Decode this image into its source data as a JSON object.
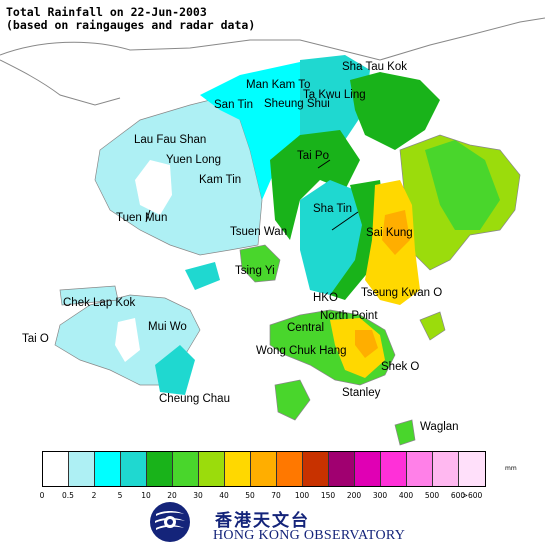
{
  "title_line1": "Total Rainfall on 22-Jun-2003",
  "title_line2": "(based on raingauges and radar data)",
  "places": [
    {
      "id": "sha-tau-kok",
      "label": "Sha Tau Kok"
    },
    {
      "id": "man-kam-to",
      "label": "Man Kam To"
    },
    {
      "id": "ta-kwu-ling",
      "label": "Ta Kwu Ling"
    },
    {
      "id": "san-tin",
      "label": "San Tin"
    },
    {
      "id": "sheung-shui",
      "label": "Sheung Shui"
    },
    {
      "id": "lau-fau-shan",
      "label": "Lau Fau Shan"
    },
    {
      "id": "yuen-long",
      "label": "Yuen Long"
    },
    {
      "id": "tai-po",
      "label": "Tai Po"
    },
    {
      "id": "kam-tin",
      "label": "Kam Tin"
    },
    {
      "id": "tuen-mun",
      "label": "Tuen Mun"
    },
    {
      "id": "sha-tin",
      "label": "Sha Tin"
    },
    {
      "id": "tsuen-wan",
      "label": "Tsuen Wan"
    },
    {
      "id": "sai-kung",
      "label": "Sai Kung"
    },
    {
      "id": "tsing-yi",
      "label": "Tsing Yi"
    },
    {
      "id": "chek-lap-kok",
      "label": "Chek Lap Kok"
    },
    {
      "id": "hko",
      "label": "HKO"
    },
    {
      "id": "tseung-kwan-o",
      "label": "Tseung Kwan O"
    },
    {
      "id": "north-point",
      "label": "North Point"
    },
    {
      "id": "mui-wo",
      "label": "Mui Wo"
    },
    {
      "id": "central",
      "label": "Central"
    },
    {
      "id": "tai-o",
      "label": "Tai O"
    },
    {
      "id": "wong-chuk-hang",
      "label": "Wong Chuk Hang"
    },
    {
      "id": "shek-o",
      "label": "Shek O"
    },
    {
      "id": "cheung-chau",
      "label": "Cheung Chau"
    },
    {
      "id": "stanley",
      "label": "Stanley"
    },
    {
      "id": "waglan",
      "label": "Waglan"
    }
  ],
  "legend": {
    "unit": "mm",
    "colors": [
      "#ffffff",
      "#aef0f4",
      "#00ffff",
      "#1fd8d0",
      "#19b31a",
      "#49d62c",
      "#9bdc0c",
      "#ffd800",
      "#ffae00",
      "#ff7800",
      "#c83200",
      "#a00070",
      "#e000b4",
      "#ff30d8",
      "#ff80e8",
      "#ffb8f0",
      "#ffe0fa"
    ],
    "ticks": [
      "0",
      "0.5",
      "2",
      "5",
      "10",
      "20",
      "30",
      "40",
      "50",
      "70",
      "100",
      "150",
      "200",
      "300",
      "400",
      "500",
      "600",
      ">600"
    ]
  },
  "organization": {
    "name_chinese": "香港天文台",
    "name_english": "HONG KONG OBSERVATORY"
  }
}
